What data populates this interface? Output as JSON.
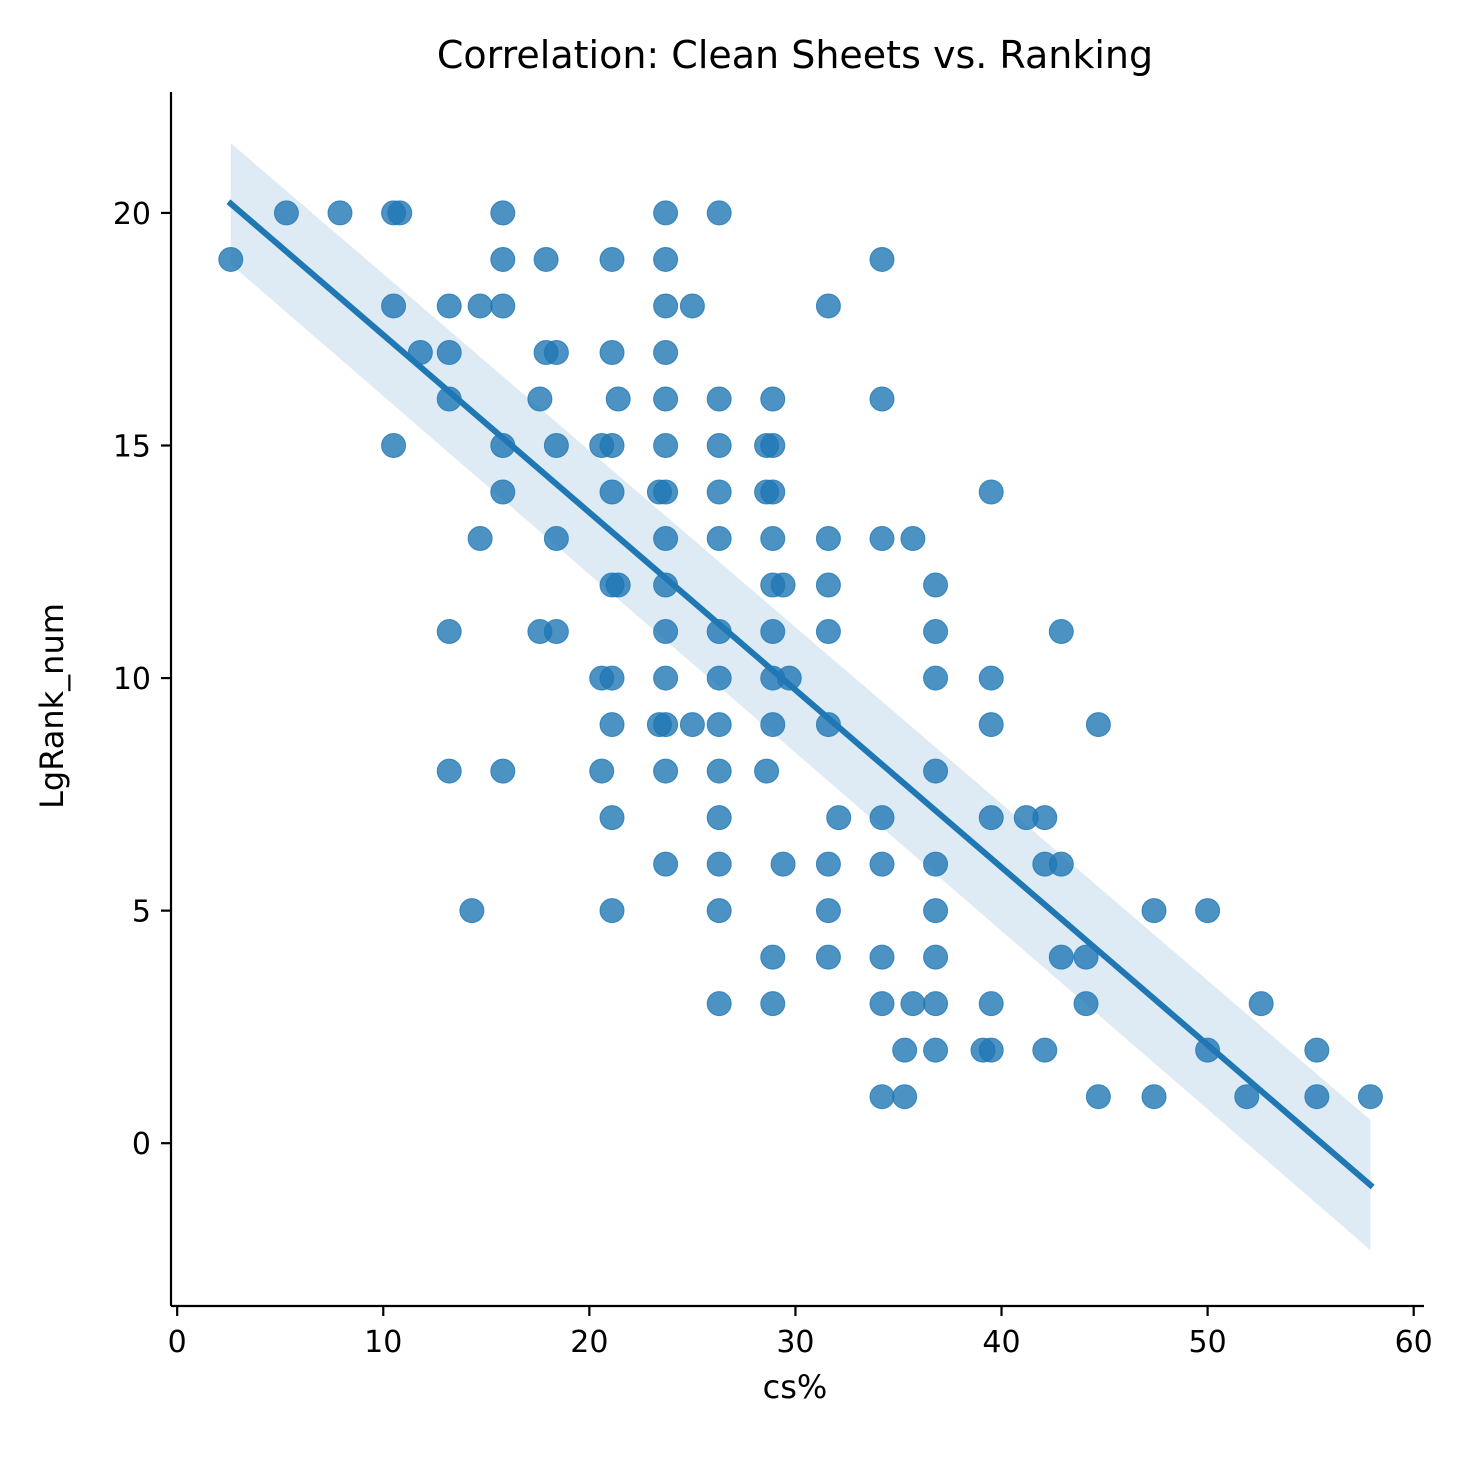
{
  "chart_data": {
    "type": "scatter",
    "title": "Correlation: Clean Sheets vs. Ranking",
    "xlabel": "cs%",
    "ylabel": "LgRank_num",
    "xlim": [
      -0.3,
      60.5
    ],
    "ylim": [
      -3.5,
      22.6
    ],
    "xticks": [
      0,
      10,
      20,
      30,
      40,
      50,
      60
    ],
    "yticks": [
      0,
      5,
      10,
      15,
      20
    ],
    "grid": false,
    "color": "#1f77b4",
    "regression": {
      "x": [
        2.6,
        57.9
      ],
      "y": [
        20.2,
        -0.9
      ],
      "ci_upper": [
        21.5,
        0.5
      ],
      "ci_lower": [
        18.9,
        -2.3
      ]
    },
    "points": [
      [
        2.6,
        19
      ],
      [
        5.3,
        20
      ],
      [
        7.9,
        20
      ],
      [
        10.5,
        20
      ],
      [
        10.8,
        20
      ],
      [
        10.5,
        18
      ],
      [
        10.5,
        15
      ],
      [
        11.8,
        17
      ],
      [
        13.2,
        18
      ],
      [
        13.2,
        17
      ],
      [
        13.2,
        16
      ],
      [
        13.2,
        11
      ],
      [
        13.2,
        8
      ],
      [
        14.3,
        5
      ],
      [
        14.7,
        18
      ],
      [
        14.7,
        13
      ],
      [
        15.8,
        20
      ],
      [
        15.8,
        19
      ],
      [
        15.8,
        18
      ],
      [
        15.8,
        15
      ],
      [
        15.8,
        14
      ],
      [
        15.8,
        8
      ],
      [
        17.6,
        16
      ],
      [
        17.6,
        11
      ],
      [
        17.9,
        19
      ],
      [
        17.9,
        17
      ],
      [
        18.4,
        17
      ],
      [
        18.4,
        15
      ],
      [
        18.4,
        13
      ],
      [
        18.4,
        11
      ],
      [
        20.6,
        15
      ],
      [
        20.6,
        10
      ],
      [
        20.6,
        8
      ],
      [
        21.1,
        19
      ],
      [
        21.1,
        17
      ],
      [
        21.1,
        15
      ],
      [
        21.1,
        14
      ],
      [
        21.1,
        12
      ],
      [
        21.1,
        10
      ],
      [
        21.1,
        9
      ],
      [
        21.1,
        7
      ],
      [
        21.1,
        5
      ],
      [
        21.4,
        16
      ],
      [
        21.4,
        12
      ],
      [
        23.7,
        20
      ],
      [
        23.7,
        19
      ],
      [
        23.7,
        18
      ],
      [
        23.7,
        17
      ],
      [
        23.7,
        16
      ],
      [
        23.7,
        15
      ],
      [
        23.7,
        14
      ],
      [
        23.7,
        13
      ],
      [
        23.7,
        12
      ],
      [
        23.7,
        11
      ],
      [
        23.7,
        10
      ],
      [
        23.7,
        9
      ],
      [
        23.7,
        8
      ],
      [
        23.7,
        6
      ],
      [
        23.4,
        14
      ],
      [
        23.4,
        9
      ],
      [
        25.0,
        18
      ],
      [
        25.0,
        9
      ],
      [
        26.3,
        20
      ],
      [
        26.3,
        16
      ],
      [
        26.3,
        15
      ],
      [
        26.3,
        14
      ],
      [
        26.3,
        13
      ],
      [
        26.3,
        11
      ],
      [
        26.3,
        10
      ],
      [
        26.3,
        9
      ],
      [
        26.3,
        8
      ],
      [
        26.3,
        7
      ],
      [
        26.3,
        6
      ],
      [
        26.3,
        5
      ],
      [
        26.3,
        3
      ],
      [
        28.6,
        15
      ],
      [
        28.6,
        14
      ],
      [
        28.6,
        8
      ],
      [
        28.9,
        16
      ],
      [
        28.9,
        15
      ],
      [
        28.9,
        14
      ],
      [
        28.9,
        13
      ],
      [
        28.9,
        12
      ],
      [
        28.9,
        11
      ],
      [
        28.9,
        10
      ],
      [
        28.9,
        9
      ],
      [
        28.9,
        4
      ],
      [
        28.9,
        3
      ],
      [
        29.4,
        12
      ],
      [
        29.4,
        6
      ],
      [
        29.7,
        10
      ],
      [
        31.6,
        18
      ],
      [
        31.6,
        13
      ],
      [
        31.6,
        12
      ],
      [
        31.6,
        11
      ],
      [
        31.6,
        9
      ],
      [
        31.6,
        6
      ],
      [
        31.6,
        5
      ],
      [
        31.6,
        4
      ],
      [
        32.1,
        7
      ],
      [
        34.2,
        19
      ],
      [
        34.2,
        16
      ],
      [
        34.2,
        13
      ],
      [
        34.2,
        7
      ],
      [
        34.2,
        6
      ],
      [
        34.2,
        4
      ],
      [
        34.2,
        3
      ],
      [
        34.2,
        1
      ],
      [
        35.3,
        2
      ],
      [
        35.3,
        1
      ],
      [
        35.7,
        13
      ],
      [
        35.7,
        3
      ],
      [
        36.8,
        12
      ],
      [
        36.8,
        11
      ],
      [
        36.8,
        10
      ],
      [
        36.8,
        8
      ],
      [
        36.8,
        6
      ],
      [
        36.8,
        5
      ],
      [
        36.8,
        4
      ],
      [
        36.8,
        3
      ],
      [
        36.8,
        2
      ],
      [
        39.5,
        14
      ],
      [
        39.5,
        10
      ],
      [
        39.5,
        9
      ],
      [
        39.5,
        7
      ],
      [
        39.5,
        3
      ],
      [
        39.5,
        2
      ],
      [
        39.1,
        2
      ],
      [
        41.2,
        7
      ],
      [
        42.1,
        7
      ],
      [
        42.1,
        6
      ],
      [
        42.1,
        2
      ],
      [
        42.9,
        11
      ],
      [
        42.9,
        6
      ],
      [
        42.9,
        4
      ],
      [
        44.1,
        4
      ],
      [
        44.1,
        3
      ],
      [
        44.7,
        9
      ],
      [
        44.7,
        1
      ],
      [
        47.4,
        5
      ],
      [
        47.4,
        1
      ],
      [
        50.0,
        5
      ],
      [
        50.0,
        2
      ],
      [
        51.9,
        1
      ],
      [
        52.6,
        3
      ],
      [
        55.3,
        2
      ],
      [
        55.3,
        1
      ],
      [
        57.9,
        1
      ]
    ]
  }
}
